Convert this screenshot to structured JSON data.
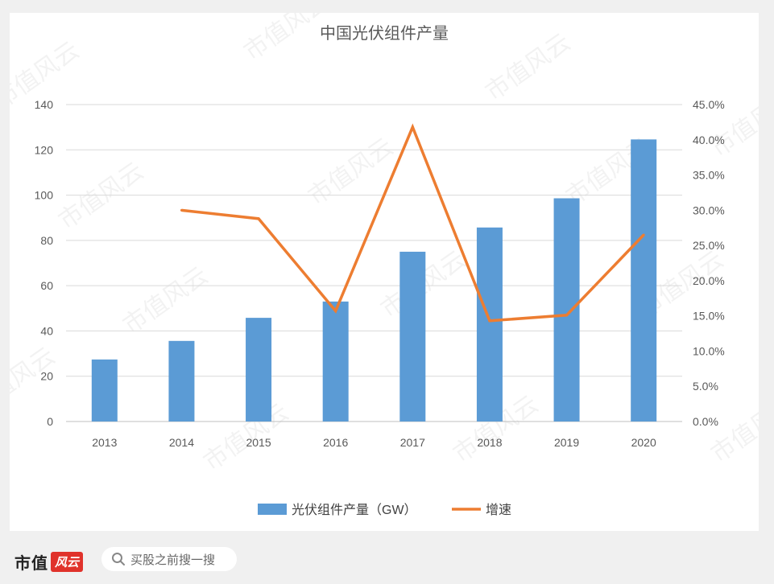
{
  "chart_data": {
    "type": "bar",
    "title": "中国光伏组件产量",
    "categories": [
      "2013",
      "2014",
      "2015",
      "2016",
      "2017",
      "2018",
      "2019",
      "2020"
    ],
    "series": [
      {
        "name": "光伏组件产量（GW）",
        "type": "bar",
        "axis": "left",
        "color": "#5b9bd5",
        "values": [
          27.4,
          35.6,
          45.8,
          53.0,
          75.0,
          85.7,
          98.6,
          124.6
        ]
      },
      {
        "name": "增速",
        "type": "line",
        "axis": "right",
        "color": "#ed7d31",
        "values": [
          null,
          0.3,
          0.288,
          0.157,
          0.418,
          0.143,
          0.151,
          0.265
        ]
      }
    ],
    "y_left": {
      "min": 0,
      "max": 140,
      "step": 20,
      "ticks": [
        "0",
        "20",
        "40",
        "60",
        "80",
        "100",
        "120",
        "140"
      ]
    },
    "y_right": {
      "min": 0,
      "max": 0.45,
      "step": 0.05,
      "ticks": [
        "0.0%",
        "5.0%",
        "10.0%",
        "15.0%",
        "20.0%",
        "25.0%",
        "30.0%",
        "35.0%",
        "40.0%",
        "45.0%"
      ]
    },
    "grid": true,
    "legend_position": "bottom"
  },
  "watermark_text": "市值风云",
  "footer": {
    "brand_text": "市值",
    "brand_logo": "风云",
    "search_placeholder": "买股之前搜一搜"
  }
}
